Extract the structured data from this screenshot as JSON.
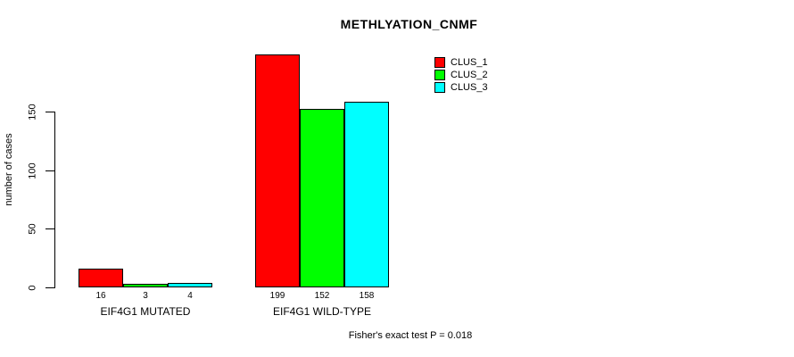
{
  "chart_data": {
    "type": "bar",
    "title": "METHLYATION_CNMF",
    "ylabel": "number of cases",
    "xlabel": "",
    "categories": [
      "EIF4G1 MUTATED",
      "EIF4G1 WILD-TYPE"
    ],
    "series": [
      {
        "name": "CLUS_1",
        "color": "#ff0000",
        "values": [
          16,
          199
        ]
      },
      {
        "name": "CLUS_2",
        "color": "#00ff00",
        "values": [
          3,
          152
        ]
      },
      {
        "name": "CLUS_3",
        "color": "#00ffff",
        "values": [
          4,
          158
        ]
      }
    ],
    "value_labels": [
      [
        "16",
        "3",
        "4"
      ],
      [
        "199",
        "152",
        "158"
      ]
    ],
    "yticks": [
      "0",
      "50",
      "100",
      "150"
    ],
    "ylim": [
      0,
      150
    ],
    "grid": false,
    "legend_position": "top-right",
    "annotation": "Fisher's exact test P = 0.018"
  },
  "colors": {
    "background": "#ffffff",
    "axis": "#000000",
    "text": "#000000"
  }
}
